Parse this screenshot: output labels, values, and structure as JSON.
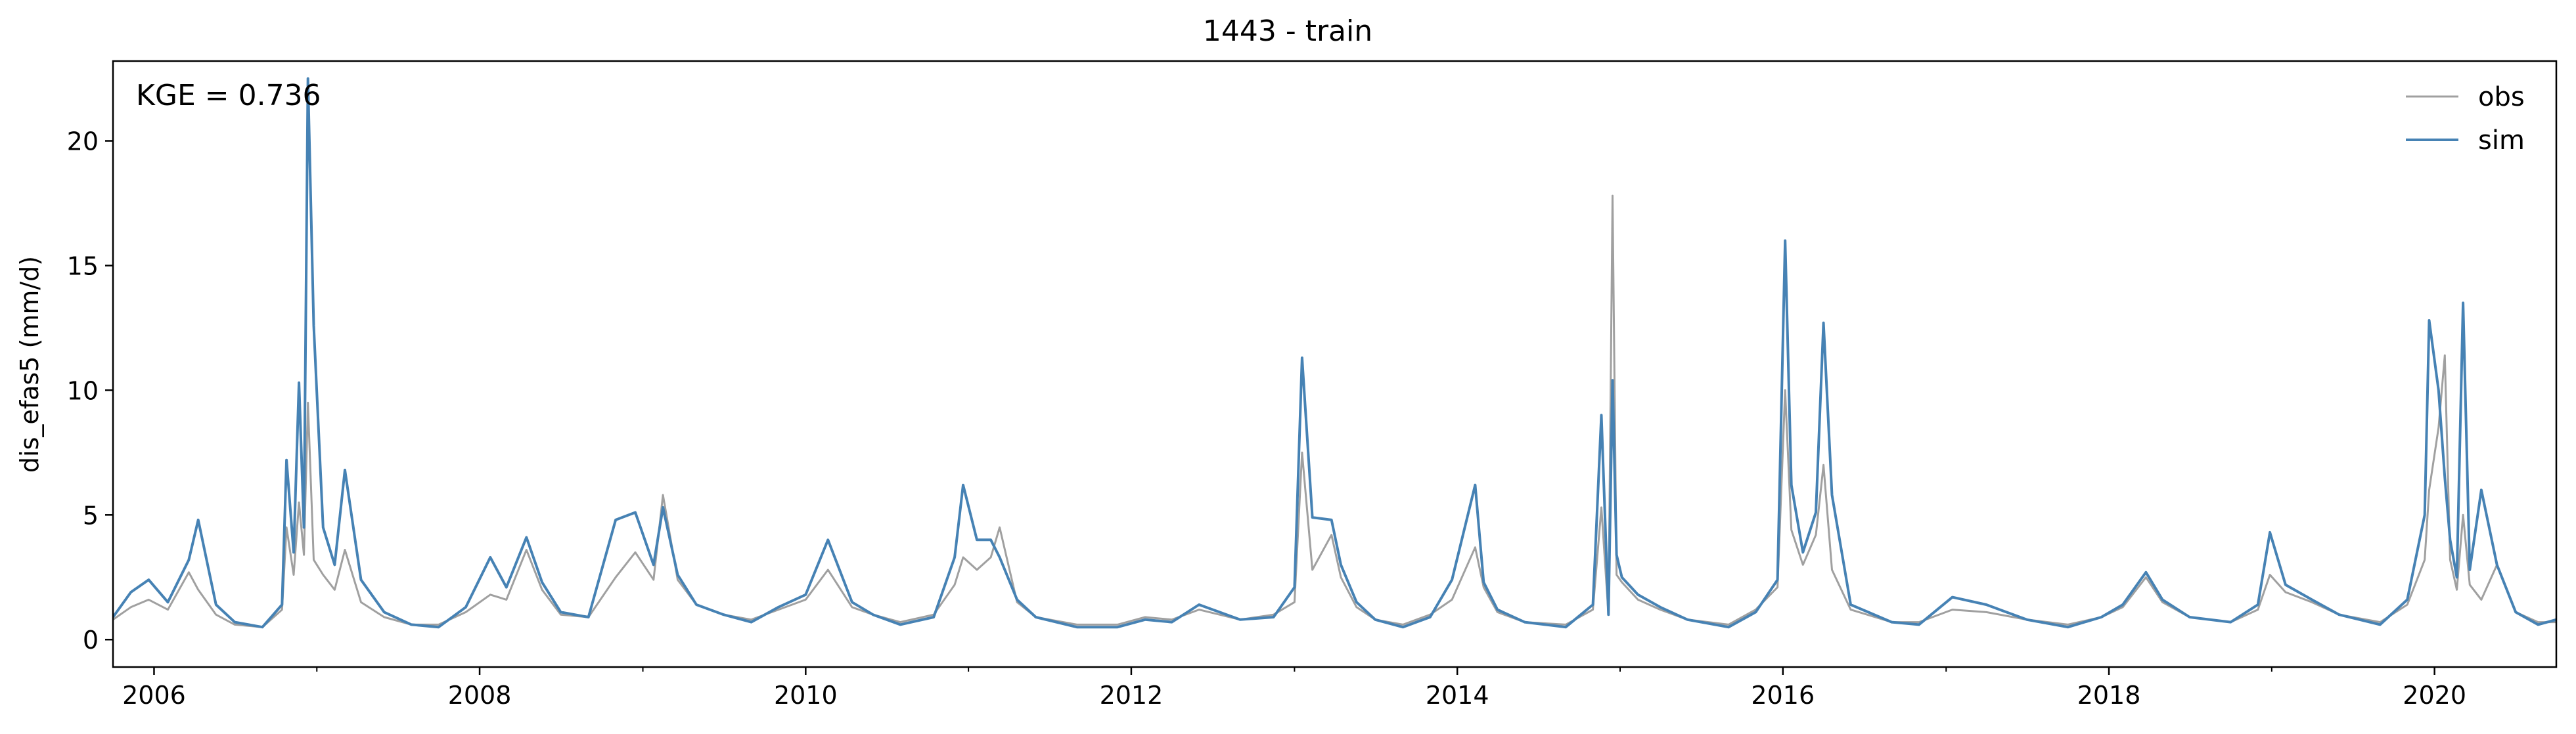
{
  "chart_data": {
    "type": "line",
    "title": "1443 - train",
    "xlabel": "",
    "ylabel": "dis_efas5 (mm/d)",
    "annotation": "KGE = 0.736",
    "xlim": [
      "2005-10-01",
      "2020-09-30"
    ],
    "ylim": [
      -1.1,
      23.2
    ],
    "x_ticks": [
      {
        "date": "2006-01-01",
        "label": "2006"
      },
      {
        "date": "2008-01-01",
        "label": "2008"
      },
      {
        "date": "2010-01-01",
        "label": "2010"
      },
      {
        "date": "2012-01-01",
        "label": "2012"
      },
      {
        "date": "2014-01-01",
        "label": "2014"
      },
      {
        "date": "2016-01-01",
        "label": "2016"
      },
      {
        "date": "2018-01-01",
        "label": "2018"
      },
      {
        "date": "2020-01-01",
        "label": "2020"
      }
    ],
    "x_minor_ticks": [
      "2007-01-01",
      "2009-01-01",
      "2011-01-01",
      "2013-01-01",
      "2015-01-01",
      "2017-01-01",
      "2019-01-01"
    ],
    "y_ticks": [
      0,
      5,
      10,
      15,
      20
    ],
    "grid": false,
    "legend_position": "top-right",
    "series": [
      {
        "name": "obs",
        "color": "#a0a0a0",
        "x": [
          "2005-10-01",
          "2005-11-10",
          "2005-12-20",
          "2006-02-01",
          "2006-03-20",
          "2006-04-10",
          "2006-05-20",
          "2006-07-01",
          "2006-09-01",
          "2006-10-15",
          "2006-10-25",
          "2006-11-10",
          "2006-11-22",
          "2006-12-03",
          "2006-12-12",
          "2006-12-25",
          "2007-01-15",
          "2007-02-10",
          "2007-03-05",
          "2007-04-10",
          "2007-06-01",
          "2007-08-01",
          "2007-10-01",
          "2007-12-01",
          "2008-01-25",
          "2008-03-01",
          "2008-04-15",
          "2008-05-20",
          "2008-07-01",
          "2008-09-01",
          "2008-11-01",
          "2008-12-15",
          "2009-01-25",
          "2009-02-15",
          "2009-03-20",
          "2009-05-01",
          "2009-07-01",
          "2009-09-01",
          "2009-11-01",
          "2010-01-01",
          "2010-02-20",
          "2010-04-15",
          "2010-06-01",
          "2010-08-01",
          "2010-10-15",
          "2010-12-01",
          "2010-12-20",
          "2011-01-20",
          "2011-02-20",
          "2011-03-12",
          "2011-04-20",
          "2011-06-01",
          "2011-09-01",
          "2011-12-01",
          "2012-02-01",
          "2012-04-01",
          "2012-06-01",
          "2012-09-01",
          "2012-11-15",
          "2013-01-01",
          "2013-01-18",
          "2013-02-10",
          "2013-03-25",
          "2013-04-15",
          "2013-05-20",
          "2013-07-01",
          "2013-09-01",
          "2013-11-01",
          "2013-12-20",
          "2014-02-10",
          "2014-03-01",
          "2014-04-01",
          "2014-06-01",
          "2014-09-01",
          "2014-11-01",
          "2014-11-20",
          "2014-12-06",
          "2014-12-15",
          "2014-12-24",
          "2015-01-05",
          "2015-02-10",
          "2015-04-01",
          "2015-06-01",
          "2015-09-01",
          "2015-11-01",
          "2015-12-20",
          "2016-01-06",
          "2016-01-20",
          "2016-02-15",
          "2016-03-15",
          "2016-04-01",
          "2016-04-20",
          "2016-06-01",
          "2016-09-01",
          "2016-11-01",
          "2017-01-15",
          "2017-04-01",
          "2017-07-01",
          "2017-10-01",
          "2017-12-15",
          "2018-02-01",
          "2018-03-25",
          "2018-05-01",
          "2018-07-01",
          "2018-10-01",
          "2018-12-01",
          "2018-12-28",
          "2019-02-01",
          "2019-04-01",
          "2019-06-01",
          "2019-09-01",
          "2019-11-01",
          "2019-12-10",
          "2019-12-20",
          "2020-01-10",
          "2020-01-24",
          "2020-02-05",
          "2020-02-20",
          "2020-03-05",
          "2020-03-20",
          "2020-04-15",
          "2020-05-20",
          "2020-07-01",
          "2020-08-20",
          "2020-09-30"
        ],
        "y": [
          0.8,
          1.3,
          1.6,
          1.2,
          2.7,
          2.0,
          1.0,
          0.6,
          0.5,
          1.2,
          4.5,
          2.6,
          5.5,
          3.4,
          9.5,
          3.2,
          2.6,
          2.0,
          3.6,
          1.5,
          0.9,
          0.6,
          0.6,
          1.1,
          1.8,
          1.6,
          3.6,
          2.0,
          1.0,
          0.9,
          2.5,
          3.5,
          2.4,
          5.8,
          2.4,
          1.4,
          1.0,
          0.8,
          1.2,
          1.6,
          2.8,
          1.3,
          1.0,
          0.7,
          1.0,
          2.2,
          3.3,
          2.8,
          3.3,
          4.5,
          1.5,
          0.9,
          0.6,
          0.6,
          0.9,
          0.8,
          1.2,
          0.8,
          1.0,
          1.5,
          7.5,
          2.8,
          4.2,
          2.5,
          1.3,
          0.8,
          0.6,
          1.0,
          1.6,
          3.7,
          2.1,
          1.1,
          0.7,
          0.6,
          1.2,
          5.3,
          1.0,
          17.8,
          2.6,
          2.3,
          1.6,
          1.2,
          0.8,
          0.6,
          1.2,
          2.1,
          10.0,
          4.4,
          3.0,
          4.2,
          7.0,
          2.8,
          1.2,
          0.7,
          0.7,
          1.2,
          1.1,
          0.8,
          0.6,
          0.9,
          1.3,
          2.5,
          1.5,
          0.9,
          0.7,
          1.2,
          2.6,
          1.9,
          1.5,
          1.0,
          0.7,
          1.4,
          3.2,
          6.0,
          8.5,
          11.4,
          3.2,
          2.0,
          5.0,
          2.2,
          1.6,
          3.0,
          1.1,
          0.7,
          0.7
        ]
      },
      {
        "name": "sim",
        "color": "#4682b4",
        "x": [
          "2005-10-01",
          "2005-11-10",
          "2005-12-20",
          "2006-02-01",
          "2006-03-20",
          "2006-04-10",
          "2006-05-20",
          "2006-07-01",
          "2006-09-01",
          "2006-10-15",
          "2006-10-25",
          "2006-11-10",
          "2006-11-22",
          "2006-12-03",
          "2006-12-12",
          "2006-12-25",
          "2007-01-15",
          "2007-02-10",
          "2007-03-05",
          "2007-04-10",
          "2007-06-01",
          "2007-08-01",
          "2007-10-01",
          "2007-12-01",
          "2008-01-25",
          "2008-03-01",
          "2008-04-15",
          "2008-05-20",
          "2008-07-01",
          "2008-09-01",
          "2008-11-01",
          "2008-12-15",
          "2009-01-25",
          "2009-02-15",
          "2009-03-20",
          "2009-05-01",
          "2009-07-01",
          "2009-09-01",
          "2009-11-01",
          "2010-01-01",
          "2010-02-20",
          "2010-04-15",
          "2010-06-01",
          "2010-08-01",
          "2010-10-15",
          "2010-12-01",
          "2010-12-20",
          "2011-01-20",
          "2011-02-20",
          "2011-03-12",
          "2011-04-20",
          "2011-06-01",
          "2011-09-01",
          "2011-12-01",
          "2012-02-01",
          "2012-04-01",
          "2012-06-01",
          "2012-09-01",
          "2012-11-15",
          "2013-01-01",
          "2013-01-18",
          "2013-02-10",
          "2013-03-25",
          "2013-04-15",
          "2013-05-20",
          "2013-07-01",
          "2013-09-01",
          "2013-11-01",
          "2013-12-20",
          "2014-02-10",
          "2014-03-01",
          "2014-04-01",
          "2014-06-01",
          "2014-09-01",
          "2014-11-01",
          "2014-11-20",
          "2014-12-06",
          "2014-12-15",
          "2014-12-24",
          "2015-01-05",
          "2015-02-10",
          "2015-04-01",
          "2015-06-01",
          "2015-09-01",
          "2015-11-01",
          "2015-12-20",
          "2016-01-06",
          "2016-01-20",
          "2016-02-15",
          "2016-03-15",
          "2016-04-01",
          "2016-04-20",
          "2016-06-01",
          "2016-09-01",
          "2016-11-01",
          "2017-01-15",
          "2017-04-01",
          "2017-07-01",
          "2017-10-01",
          "2017-12-15",
          "2018-02-01",
          "2018-03-25",
          "2018-05-01",
          "2018-07-01",
          "2018-10-01",
          "2018-12-01",
          "2018-12-28",
          "2019-02-01",
          "2019-04-01",
          "2019-06-01",
          "2019-09-01",
          "2019-11-01",
          "2019-12-10",
          "2019-12-20",
          "2020-01-10",
          "2020-01-24",
          "2020-02-05",
          "2020-02-20",
          "2020-03-05",
          "2020-03-20",
          "2020-04-15",
          "2020-05-20",
          "2020-07-01",
          "2020-08-20",
          "2020-09-30"
        ],
        "y": [
          0.9,
          1.9,
          2.4,
          1.5,
          3.2,
          4.8,
          1.4,
          0.7,
          0.5,
          1.4,
          7.2,
          3.5,
          10.3,
          4.5,
          22.5,
          12.6,
          4.5,
          3.0,
          6.8,
          2.4,
          1.1,
          0.6,
          0.5,
          1.3,
          3.3,
          2.1,
          4.1,
          2.3,
          1.1,
          0.9,
          4.8,
          5.1,
          3.0,
          5.3,
          2.6,
          1.4,
          1.0,
          0.7,
          1.3,
          1.8,
          4.0,
          1.5,
          1.0,
          0.6,
          0.9,
          3.3,
          6.2,
          4.0,
          4.0,
          3.3,
          1.6,
          0.9,
          0.5,
          0.5,
          0.8,
          0.7,
          1.4,
          0.8,
          0.9,
          2.1,
          11.3,
          4.9,
          4.8,
          3.0,
          1.5,
          0.8,
          0.5,
          0.9,
          2.4,
          6.2,
          2.3,
          1.2,
          0.7,
          0.5,
          1.4,
          9.0,
          1.0,
          10.4,
          3.4,
          2.5,
          1.8,
          1.3,
          0.8,
          0.5,
          1.1,
          2.4,
          16.0,
          6.2,
          3.5,
          5.1,
          12.7,
          5.8,
          1.4,
          0.7,
          0.6,
          1.7,
          1.4,
          0.8,
          0.5,
          0.9,
          1.4,
          2.7,
          1.6,
          0.9,
          0.7,
          1.4,
          4.3,
          2.2,
          1.6,
          1.0,
          0.6,
          1.6,
          5.0,
          12.8,
          10.0,
          6.5,
          4.0,
          2.5,
          13.5,
          2.8,
          6.0,
          3.0,
          1.1,
          0.6,
          0.8
        ]
      }
    ]
  }
}
